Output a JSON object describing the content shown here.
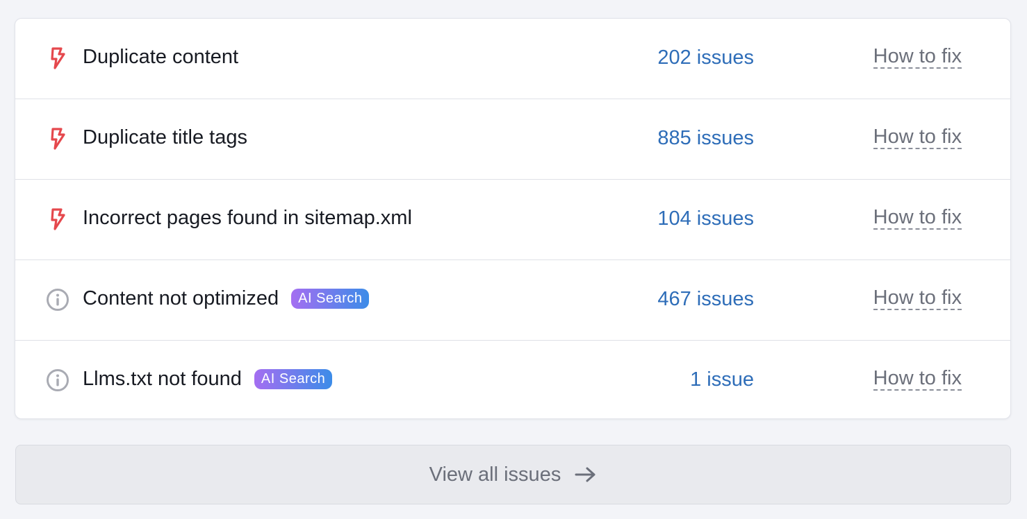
{
  "issues": [
    {
      "title": "Duplicate content",
      "icon": "lightning-icon",
      "badge": null,
      "count": "202 issues",
      "fix": "How to fix"
    },
    {
      "title": "Duplicate title tags",
      "icon": "lightning-icon",
      "badge": null,
      "count": "885 issues",
      "fix": "How to fix"
    },
    {
      "title": "Incorrect pages found in sitemap.xml",
      "icon": "lightning-icon",
      "badge": null,
      "count": "104 issues",
      "fix": "How to fix"
    },
    {
      "title": "Content not optimized",
      "icon": "info-icon",
      "badge": "AI Search",
      "count": "467 issues",
      "fix": "How to fix"
    },
    {
      "title": "Llms.txt not found",
      "icon": "info-icon",
      "badge": "AI Search",
      "count": "1 issue",
      "fix": "How to fix"
    }
  ],
  "view_all": {
    "label": "View all issues",
    "icon": "arrow-right-icon"
  },
  "colors": {
    "error": "#e5484d",
    "link": "#2e6db8",
    "badge_start": "#a46ef1",
    "badge_end": "#3c8ce8"
  }
}
